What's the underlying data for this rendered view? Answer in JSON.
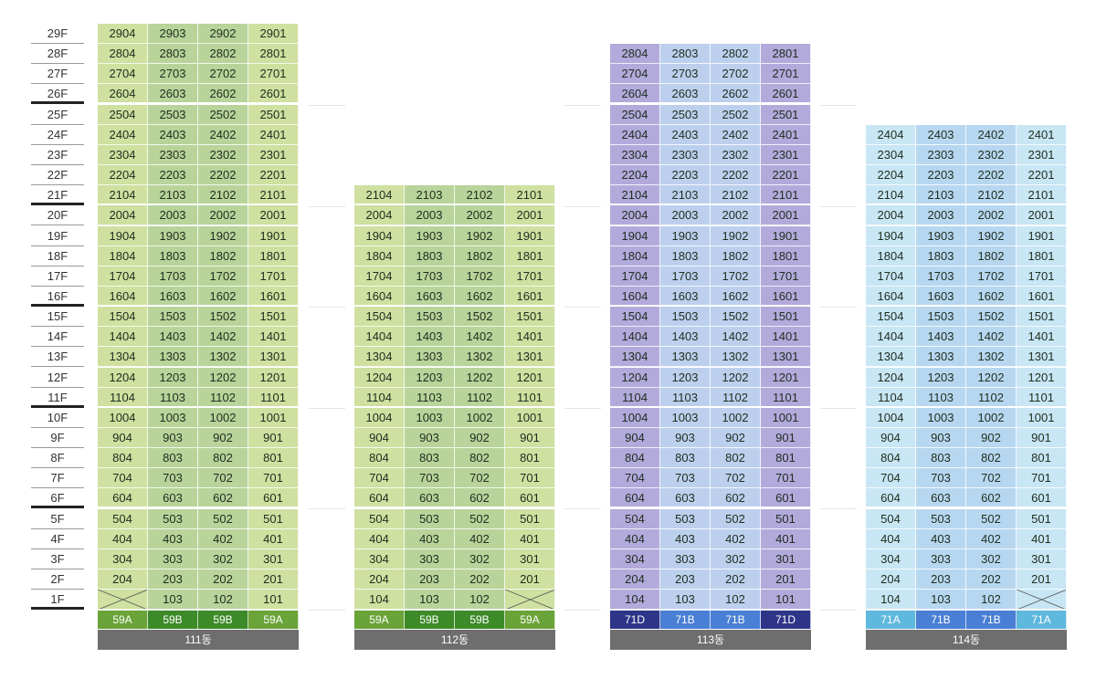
{
  "floors": [
    "29F",
    "28F",
    "27F",
    "26F",
    "25F",
    "24F",
    "23F",
    "22F",
    "21F",
    "20F",
    "19F",
    "18F",
    "17F",
    "16F",
    "15F",
    "14F",
    "13F",
    "12F",
    "11F",
    "10F",
    "9F",
    "8F",
    "7F",
    "6F",
    "5F",
    "4F",
    "3F",
    "2F",
    "1F"
  ],
  "buildings": [
    {
      "name": "111동",
      "top_floor": 29,
      "empty_units": [
        "104"
      ],
      "types": [
        "59A",
        "59B",
        "59B",
        "59A"
      ],
      "type_colors": [
        "#6aa338",
        "#3d8a28",
        "#3d8a28",
        "#6aa338"
      ],
      "col_colors": [
        "#cfe0a0",
        "#b8d49a",
        "#b8d49a",
        "#cfe0a0"
      ]
    },
    {
      "name": "112동",
      "top_floor": 21,
      "empty_units": [
        "101"
      ],
      "types": [
        "59A",
        "59B",
        "59B",
        "59A"
      ],
      "type_colors": [
        "#6aa338",
        "#3d8a28",
        "#3d8a28",
        "#6aa338"
      ],
      "col_colors": [
        "#cfe0a0",
        "#b8d49a",
        "#b8d49a",
        "#cfe0a0"
      ]
    },
    {
      "name": "113동",
      "top_floor": 28,
      "empty_units": [],
      "types": [
        "71D",
        "71B",
        "71B",
        "71D"
      ],
      "type_colors": [
        "#2e3588",
        "#4a7fd6",
        "#4a7fd6",
        "#2e3588"
      ],
      "col_colors": [
        "#b3aadc",
        "#bcd0ee",
        "#bcd0ee",
        "#b3aadc"
      ]
    },
    {
      "name": "114동",
      "top_floor": 24,
      "empty_units": [
        "101"
      ],
      "types": [
        "71A",
        "71B",
        "71B",
        "71A"
      ],
      "type_colors": [
        "#5fb8dd",
        "#4a7fd6",
        "#4a7fd6",
        "#5fb8dd"
      ],
      "col_colors": [
        "#c8e6f4",
        "#b7d7f0",
        "#b7d7f0",
        "#c8e6f4"
      ]
    }
  ]
}
